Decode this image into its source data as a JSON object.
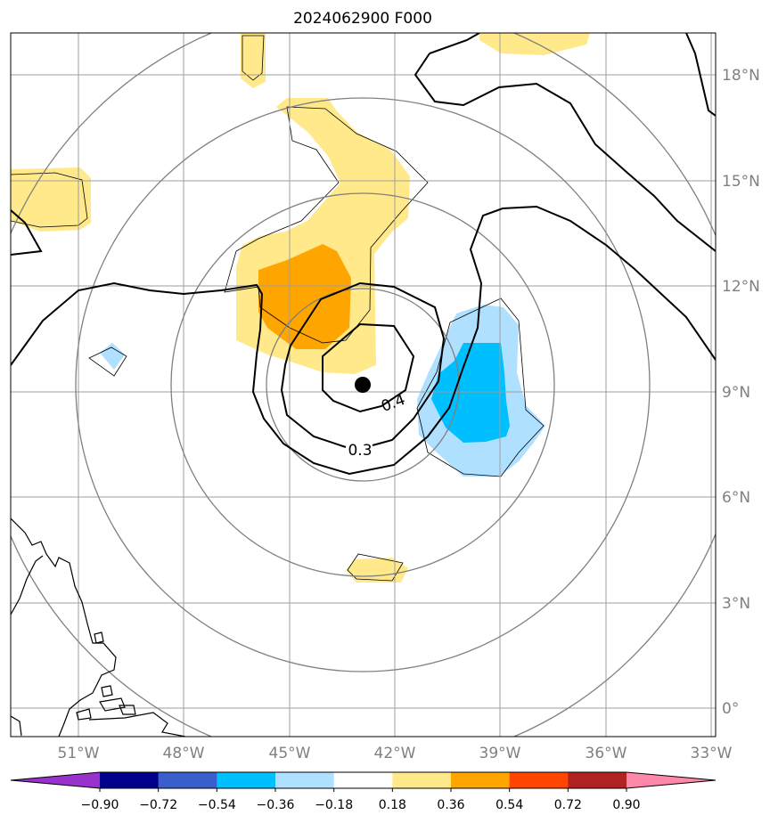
{
  "title": "2024062900 F000",
  "latitudes": [
    {
      "label": "18°N",
      "value": 18
    },
    {
      "label": "15°N",
      "value": 15
    },
    {
      "label": "12°N",
      "value": 12
    },
    {
      "label": "9°N",
      "value": 9
    },
    {
      "label": "6°N",
      "value": 6
    },
    {
      "label": "3°N",
      "value": 3
    },
    {
      "label": "0°",
      "value": 0
    }
  ],
  "longitudes": [
    {
      "label": "51°W",
      "value": -51
    },
    {
      "label": "48°W",
      "value": -48
    },
    {
      "label": "45°W",
      "value": -45
    },
    {
      "label": "42°W",
      "value": -42
    },
    {
      "label": "39°W",
      "value": -39
    },
    {
      "label": "36°W",
      "value": -36
    },
    {
      "label": "33°W",
      "value": -33
    }
  ],
  "contour_labels": [
    "0.4",
    "0.3"
  ],
  "center_marker": {
    "lon": -43,
    "lat": 9.2
  },
  "colorbar": {
    "ticks": [
      "−0.90",
      "−0.72",
      "−0.54",
      "−0.36",
      "−0.18",
      "0.18",
      "0.36",
      "0.54",
      "0.72",
      "0.90"
    ],
    "colors": [
      "#9932cc",
      "#00008b",
      "#3a5fcd",
      "#00bfff",
      "#b0e0ff",
      "#ffffff",
      "#ffe98a",
      "#ffa500",
      "#ff4500",
      "#b22222",
      "#ff88aa"
    ]
  }
}
